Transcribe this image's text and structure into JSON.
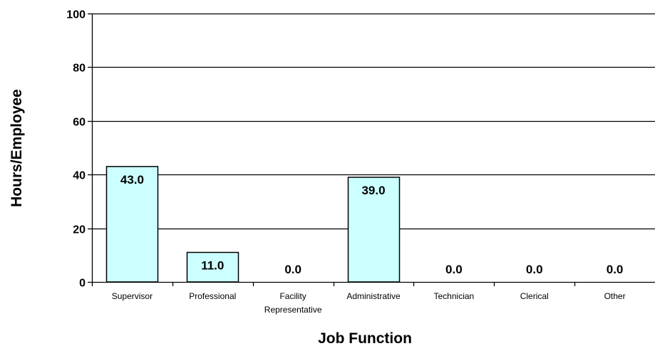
{
  "chart_data": {
    "type": "bar",
    "xlabel": "Job Function",
    "ylabel": "Hours/Employee",
    "ylim": [
      0,
      100
    ],
    "yticks": [
      "0",
      "20",
      "40",
      "60",
      "80",
      "100"
    ],
    "grid": true,
    "categories": [
      [
        "Supervisor"
      ],
      [
        "Professional"
      ],
      [
        "Facility",
        "Representative"
      ],
      [
        "Administrative"
      ],
      [
        "Technician"
      ],
      [
        "Clerical"
      ],
      [
        "Other"
      ]
    ],
    "values": [
      43.0,
      11.0,
      0.0,
      39.0,
      0.0,
      0.0,
      0.0
    ],
    "data_labels": [
      "43.0",
      "11.0",
      "0.0",
      "39.0",
      "0.0",
      "0.0",
      "0.0"
    ],
    "colors": {
      "bar_fill": "#ccffff",
      "bar_stroke": "#000000",
      "grid": "#000000"
    }
  }
}
